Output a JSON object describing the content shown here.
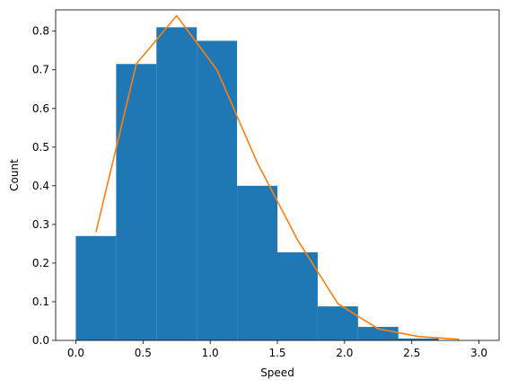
{
  "chart_data": {
    "type": "bar",
    "title": "",
    "xlabel": "Speed",
    "ylabel": "Count",
    "xlim": [
      -0.15,
      3.15
    ],
    "ylim": [
      0,
      0.855
    ],
    "xticks": [
      0.0,
      0.5,
      1.0,
      1.5,
      2.0,
      2.5,
      3.0
    ],
    "xtick_labels": [
      "0.0",
      "0.5",
      "1.0",
      "1.5",
      "2.0",
      "2.5",
      "3.0"
    ],
    "yticks": [
      0.0,
      0.1,
      0.2,
      0.3,
      0.4,
      0.5,
      0.6,
      0.7,
      0.8
    ],
    "ytick_labels": [
      "0.0",
      "0.1",
      "0.2",
      "0.3",
      "0.4",
      "0.5",
      "0.6",
      "0.7",
      "0.8"
    ],
    "grid": false,
    "histogram": {
      "color": "#1f77b4",
      "bin_edges": [
        0.0,
        0.3,
        0.6,
        0.9,
        1.2,
        1.5,
        1.8,
        2.1,
        2.4,
        2.7
      ],
      "values": [
        0.27,
        0.715,
        0.81,
        0.775,
        0.4,
        0.228,
        0.088,
        0.035,
        0.005
      ]
    },
    "line": {
      "color": "#ff7f0e",
      "x": [
        0.15,
        0.45,
        0.75,
        1.05,
        1.35,
        1.65,
        1.95,
        2.25,
        2.55,
        2.85
      ],
      "y": [
        0.28,
        0.715,
        0.84,
        0.7,
        0.46,
        0.26,
        0.095,
        0.03,
        0.01,
        0.003
      ]
    }
  }
}
